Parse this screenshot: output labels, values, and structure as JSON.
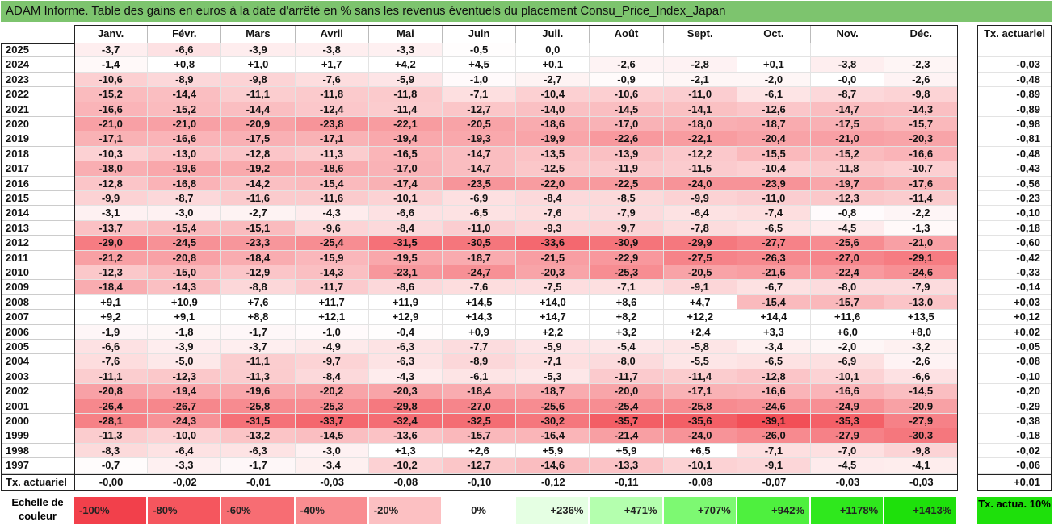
{
  "title": "ADAM Informe. Table des gains en euros à la date d'arrêté en % sans les revenus éventuels du placement Consu_Price_Index_Japan",
  "chart_data": {
    "type": "heatmap",
    "title": "ADAM Informe. Table des gains en euros à la date d'arrêté en % sans les revenus éventuels du placement Consu_Price_Index_Japan",
    "columns": [
      "Janv.",
      "Févr.",
      "Mars",
      "Avril",
      "Mai",
      "Juin",
      "Juil.",
      "Août",
      "Sept.",
      "Oct.",
      "Nov.",
      "Déc."
    ],
    "rate_header": "Tx. actuariel",
    "rows": [
      {
        "year": "2025",
        "values": [
          "-3,7",
          "-6,6",
          "-3,9",
          "-3,8",
          "-3,3",
          "-0,5",
          "0,0",
          "",
          "",
          "",
          "",
          ""
        ],
        "rate": ""
      },
      {
        "year": "2024",
        "values": [
          "-1,4",
          "+0,8",
          "+1,0",
          "+1,7",
          "+4,2",
          "+4,5",
          "+0,1",
          "-2,6",
          "-2,8",
          "+0,1",
          "-3,8",
          "-2,3"
        ],
        "rate": "-0,03"
      },
      {
        "year": "2023",
        "values": [
          "-10,6",
          "-8,9",
          "-9,8",
          "-7,6",
          "-5,9",
          "-1,0",
          "-2,7",
          "-0,9",
          "-2,1",
          "-2,0",
          "-0,0",
          "-2,6"
        ],
        "rate": "-0,48"
      },
      {
        "year": "2022",
        "values": [
          "-15,2",
          "-14,4",
          "-11,1",
          "-11,8",
          "-11,8",
          "-7,1",
          "-10,4",
          "-10,6",
          "-11,0",
          "-6,1",
          "-8,7",
          "-9,8"
        ],
        "rate": "-0,89"
      },
      {
        "year": "2021",
        "values": [
          "-16,6",
          "-15,2",
          "-14,4",
          "-12,4",
          "-11,4",
          "-12,7",
          "-14,0",
          "-14,5",
          "-14,1",
          "-12,6",
          "-14,7",
          "-14,3"
        ],
        "rate": "-0,89"
      },
      {
        "year": "2020",
        "values": [
          "-21,0",
          "-21,0",
          "-20,9",
          "-23,8",
          "-22,1",
          "-20,5",
          "-18,6",
          "-17,0",
          "-18,0",
          "-18,7",
          "-17,5",
          "-15,7"
        ],
        "rate": "-0,98"
      },
      {
        "year": "2019",
        "values": [
          "-17,1",
          "-16,6",
          "-17,5",
          "-17,1",
          "-19,4",
          "-19,3",
          "-19,9",
          "-22,6",
          "-22,1",
          "-20,4",
          "-21,0",
          "-20,3"
        ],
        "rate": "-0,81"
      },
      {
        "year": "2018",
        "values": [
          "-10,3",
          "-13,0",
          "-12,8",
          "-11,3",
          "-16,5",
          "-14,7",
          "-13,5",
          "-13,9",
          "-12,2",
          "-15,5",
          "-15,2",
          "-16,6"
        ],
        "rate": "-0,48"
      },
      {
        "year": "2017",
        "values": [
          "-18,0",
          "-19,6",
          "-19,2",
          "-18,6",
          "-17,0",
          "-14,7",
          "-12,5",
          "-11,9",
          "-11,5",
          "-10,4",
          "-11,8",
          "-10,7"
        ],
        "rate": "-0,43"
      },
      {
        "year": "2016",
        "values": [
          "-12,8",
          "-16,8",
          "-14,2",
          "-15,4",
          "-17,4",
          "-23,5",
          "-22,0",
          "-22,5",
          "-24,0",
          "-23,9",
          "-19,7",
          "-17,6"
        ],
        "rate": "-0,56"
      },
      {
        "year": "2015",
        "values": [
          "-9,9",
          "-8,7",
          "-11,6",
          "-11,6",
          "-10,1",
          "-6,9",
          "-8,4",
          "-8,5",
          "-9,9",
          "-11,0",
          "-12,3",
          "-11,4"
        ],
        "rate": "-0,23"
      },
      {
        "year": "2014",
        "values": [
          "-3,1",
          "-3,0",
          "-2,7",
          "-4,3",
          "-6,6",
          "-6,5",
          "-7,6",
          "-7,9",
          "-6,4",
          "-7,4",
          "-0,8",
          "-2,2"
        ],
        "rate": "-0,10"
      },
      {
        "year": "2013",
        "values": [
          "-13,7",
          "-15,4",
          "-15,1",
          "-9,6",
          "-8,4",
          "-11,0",
          "-9,3",
          "-9,7",
          "-7,8",
          "-6,5",
          "-4,5",
          "-1,3"
        ],
        "rate": "-0,18"
      },
      {
        "year": "2012",
        "values": [
          "-29,0",
          "-24,5",
          "-23,3",
          "-25,4",
          "-31,5",
          "-30,5",
          "-33,6",
          "-30,9",
          "-29,9",
          "-27,7",
          "-25,6",
          "-21,0"
        ],
        "rate": "-0,60"
      },
      {
        "year": "2011",
        "values": [
          "-21,2",
          "-20,8",
          "-18,4",
          "-15,9",
          "-19,5",
          "-18,7",
          "-21,5",
          "-22,9",
          "-27,5",
          "-26,3",
          "-27,0",
          "-29,1"
        ],
        "rate": "-0,42"
      },
      {
        "year": "2010",
        "values": [
          "-12,3",
          "-15,0",
          "-12,9",
          "-14,3",
          "-23,1",
          "-24,7",
          "-20,3",
          "-25,3",
          "-20,5",
          "-21,6",
          "-22,4",
          "-24,6"
        ],
        "rate": "-0,33"
      },
      {
        "year": "2009",
        "values": [
          "-18,4",
          "-14,3",
          "-8,8",
          "-11,7",
          "-8,6",
          "-7,6",
          "-7,5",
          "-7,1",
          "-9,1",
          "-6,7",
          "-8,0",
          "-7,9"
        ],
        "rate": "-0,14"
      },
      {
        "year": "2008",
        "values": [
          "+9,1",
          "+10,9",
          "+7,6",
          "+11,7",
          "+11,9",
          "+14,5",
          "+14,0",
          "+8,6",
          "+4,7",
          "-15,4",
          "-15,7",
          "-13,0"
        ],
        "rate": "+0,03"
      },
      {
        "year": "2007",
        "values": [
          "+9,2",
          "+9,1",
          "+8,8",
          "+12,1",
          "+12,9",
          "+14,3",
          "+14,7",
          "+8,2",
          "+12,2",
          "+14,4",
          "+11,6",
          "+13,5"
        ],
        "rate": "+0,12"
      },
      {
        "year": "2006",
        "values": [
          "-1,9",
          "-1,8",
          "-1,7",
          "-1,0",
          "-0,4",
          "+0,9",
          "+2,2",
          "+3,2",
          "+2,4",
          "+3,3",
          "+6,0",
          "+8,0"
        ],
        "rate": "+0,02"
      },
      {
        "year": "2005",
        "values": [
          "-6,6",
          "-3,9",
          "-3,7",
          "-4,9",
          "-6,3",
          "-7,7",
          "-5,9",
          "-5,4",
          "-5,8",
          "-3,4",
          "-2,0",
          "-3,2"
        ],
        "rate": "-0,05"
      },
      {
        "year": "2004",
        "values": [
          "-7,6",
          "-5,0",
          "-11,1",
          "-9,7",
          "-6,3",
          "-8,9",
          "-7,1",
          "-8,0",
          "-5,5",
          "-6,5",
          "-6,9",
          "-2,6"
        ],
        "rate": "-0,08"
      },
      {
        "year": "2003",
        "values": [
          "-11,1",
          "-12,3",
          "-11,3",
          "-8,4",
          "-4,3",
          "-6,1",
          "-5,3",
          "-11,7",
          "-11,4",
          "-12,8",
          "-10,1",
          "-6,6"
        ],
        "rate": "-0,10"
      },
      {
        "year": "2002",
        "values": [
          "-20,8",
          "-19,4",
          "-19,6",
          "-20,2",
          "-20,3",
          "-18,4",
          "-18,7",
          "-20,0",
          "-17,1",
          "-16,6",
          "-16,6",
          "-14,5"
        ],
        "rate": "-0,20"
      },
      {
        "year": "2001",
        "values": [
          "-26,4",
          "-26,7",
          "-25,8",
          "-25,3",
          "-29,8",
          "-27,0",
          "-25,6",
          "-25,4",
          "-25,8",
          "-24,6",
          "-24,9",
          "-20,9"
        ],
        "rate": "-0,29"
      },
      {
        "year": "2000",
        "values": [
          "-28,1",
          "-24,3",
          "-31,5",
          "-33,7",
          "-32,4",
          "-32,5",
          "-30,2",
          "-35,7",
          "-35,6",
          "-39,1",
          "-35,3",
          "-27,9"
        ],
        "rate": "-0,38"
      },
      {
        "year": "1999",
        "values": [
          "-11,3",
          "-10,0",
          "-13,2",
          "-14,5",
          "-13,6",
          "-15,7",
          "-16,4",
          "-21,4",
          "-24,0",
          "-26,0",
          "-27,9",
          "-30,3"
        ],
        "rate": "-0,18"
      },
      {
        "year": "1998",
        "values": [
          "-8,3",
          "-6,4",
          "-6,3",
          "-3,0",
          "+1,3",
          "+2,6",
          "+5,9",
          "+5,9",
          "+6,5",
          "-7,1",
          "-7,0",
          "-9,8"
        ],
        "rate": "-0,02"
      },
      {
        "year": "1997",
        "values": [
          "-0,7",
          "-3,3",
          "-1,7",
          "-3,4",
          "-10,2",
          "-12,7",
          "-14,6",
          "-13,3",
          "-10,1",
          "-9,1",
          "-4,5",
          "-4,1"
        ],
        "rate": "-0,06"
      }
    ],
    "summary_row": {
      "label": "Tx. actuariel",
      "values": [
        "-0,00",
        "-0,02",
        "-0,01",
        "-0,03",
        "-0,08",
        "-0,10",
        "-0,12",
        "-0,11",
        "-0,08",
        "-0,07",
        "-0,03",
        "-0,03"
      ],
      "rate": "+0,01"
    },
    "legend": {
      "label": "Echelle de couleur",
      "items": [
        {
          "text": "-100%",
          "color": "#f2404b"
        },
        {
          "text": "-80%",
          "color": "#f5565e"
        },
        {
          "text": "-60%",
          "color": "#f76d73"
        },
        {
          "text": "-40%",
          "color": "#f98c90"
        },
        {
          "text": "-20%",
          "color": "#fcc0c2"
        },
        {
          "text": "0%",
          "color": "#ffffff"
        },
        {
          "text": "+236%",
          "color": "#e5ffe3"
        },
        {
          "text": "+471%",
          "color": "#b4ffae"
        },
        {
          "text": "+707%",
          "color": "#7df972"
        },
        {
          "text": "+942%",
          "color": "#4ef03e"
        },
        {
          "text": "+1178%",
          "color": "#2fe81d"
        },
        {
          "text": "+1413%",
          "color": "#1ee00b"
        }
      ],
      "rate_label": "Tx. actua. 10%",
      "rate_color": "#1ee00b"
    }
  }
}
